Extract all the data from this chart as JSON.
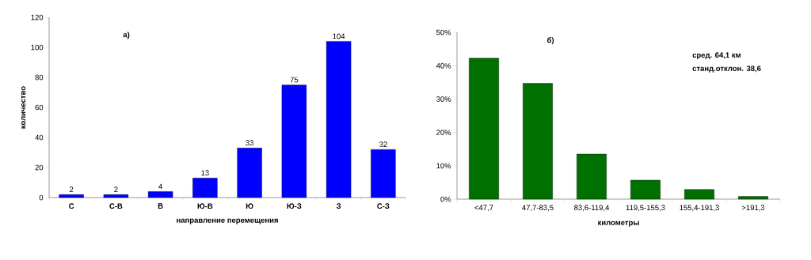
{
  "chart_data": [
    {
      "type": "bar",
      "categories": [
        "С",
        "С-В",
        "В",
        "Ю-В",
        "Ю",
        "Ю-З",
        "З",
        "С-З"
      ],
      "values": [
        2,
        2,
        4,
        13,
        33,
        75,
        104,
        32
      ],
      "color": "#0000ff",
      "ylim": [
        0,
        120
      ],
      "yticks": [
        0,
        20,
        40,
        60,
        80,
        100,
        120
      ],
      "xlabel": "направление перемещения",
      "ylabel": "количество",
      "data_labels": true,
      "annotations": [
        "а)"
      ]
    },
    {
      "type": "bar",
      "categories": [
        "<47,7",
        "47,7-83,5",
        "83,6-119,4",
        "119,5-155,3",
        "155,4-191,3",
        ">191,3"
      ],
      "values": [
        42.3,
        34.7,
        13.5,
        5.7,
        2.9,
        0.8
      ],
      "color": "#007000",
      "ylim": [
        0,
        50
      ],
      "yticks": [
        {
          "value": 0,
          "label": "0%"
        },
        {
          "value": 10,
          "label": "10%"
        },
        {
          "value": 20,
          "label": "20%"
        },
        {
          "value": 30,
          "label": "30%"
        },
        {
          "value": 40,
          "label": "40%"
        },
        {
          "value": 50,
          "label": "50%"
        }
      ],
      "xlabel": "километры",
      "annotations": [
        "б)",
        "сред. 64,1 км",
        "станд.отклон. 38,6"
      ]
    }
  ]
}
